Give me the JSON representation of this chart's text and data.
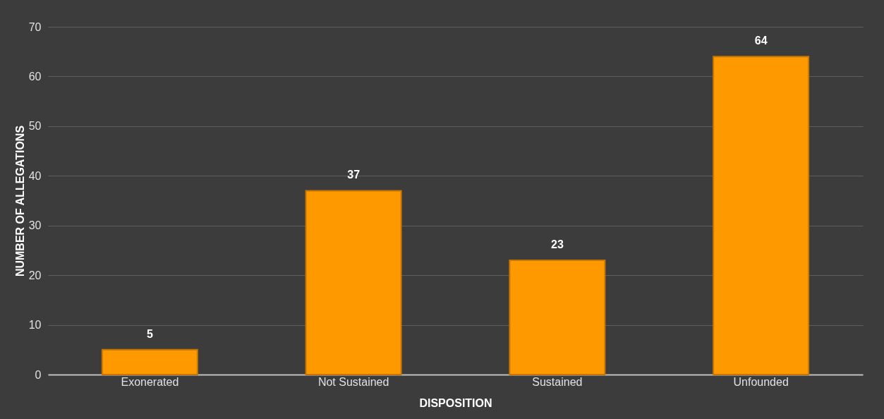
{
  "chart_data": {
    "type": "bar",
    "xlabel": "DISPOSITION",
    "ylabel": "NUMBER OF ALLEGATIONS",
    "categories": [
      "Exonerated",
      "Not Sustained",
      "Sustained",
      "Unfounded"
    ],
    "values": [
      5,
      37,
      23,
      64
    ],
    "color": "#ff9900",
    "ylim": [
      0,
      70
    ],
    "yticks": [
      0,
      10,
      20,
      30,
      40,
      50,
      60,
      70
    ],
    "grid": "y",
    "data_labels": true
  }
}
